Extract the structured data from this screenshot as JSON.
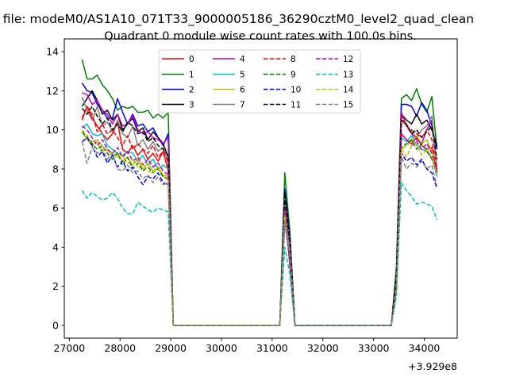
{
  "chart_data": {
    "type": "line",
    "suptitle": "n file: modeM0/AS1A10_071T33_9000005186_36290cztM0_level2_quad_clean",
    "title": "Quadrant 0 module wise count rates with 100.0s bins.",
    "xlabel": "",
    "ylabel": "",
    "x_offset_text": "+3.929e8",
    "xlim": [
      26900,
      34650
    ],
    "ylim": [
      -0.65,
      14.65
    ],
    "xticks": [
      27000,
      28000,
      29000,
      30000,
      31000,
      32000,
      33000,
      34000
    ],
    "yticks": [
      0,
      2,
      4,
      6,
      8,
      10,
      12,
      14
    ],
    "grid": false,
    "legend_placement": "top-center",
    "legend_columns": 4,
    "x": [
      27250,
      27350,
      27450,
      27550,
      27650,
      27750,
      27850,
      27950,
      28050,
      28150,
      28250,
      28350,
      28450,
      28550,
      28650,
      28750,
      28850,
      28950,
      29050,
      29150,
      29250,
      29350,
      29450,
      29550,
      29650,
      29750,
      29850,
      29950,
      30050,
      30150,
      30250,
      30350,
      30450,
      30550,
      30650,
      30750,
      30850,
      30950,
      31050,
      31150,
      31250,
      31350,
      31450,
      31550,
      31650,
      31750,
      31850,
      31950,
      32050,
      32150,
      32250,
      32350,
      32450,
      32550,
      32650,
      32750,
      32850,
      32950,
      33050,
      33150,
      33250,
      33350,
      33450,
      33550,
      33650,
      33750,
      33850,
      33950,
      34050,
      34150,
      34250
    ],
    "series": [
      {
        "name": "0",
        "color": "#ff0000",
        "dash": false,
        "values": [
          10.5,
          11.2,
          10.6,
          10.2,
          9.8,
          9.5,
          9.8,
          10.4,
          9.0,
          8.8,
          9.2,
          8.7,
          9.0,
          8.5,
          8.8,
          8.4,
          8.9,
          7.9,
          0,
          0,
          0,
          0,
          0,
          0,
          0,
          0,
          0,
          0,
          0,
          0,
          0,
          0,
          0,
          0,
          0,
          0,
          0,
          0,
          0,
          0,
          6.0,
          3.0,
          0,
          0,
          0,
          0,
          0,
          0,
          0,
          0,
          0,
          0,
          0,
          0,
          0,
          0,
          0,
          0,
          0,
          0,
          0,
          0,
          2.0,
          9.8,
          9.5,
          9.3,
          9.6,
          9.2,
          9.0,
          9.1,
          7.8
        ]
      },
      {
        "name": "1",
        "color": "#008000",
        "dash": false,
        "values": [
          13.6,
          12.6,
          12.6,
          12.8,
          12.3,
          12.0,
          11.6,
          11.0,
          11.2,
          11.1,
          11.2,
          10.9,
          10.9,
          11.0,
          10.6,
          10.8,
          10.6,
          10.9,
          0,
          0,
          0,
          0,
          0,
          0,
          0,
          0,
          0,
          0,
          0,
          0,
          0,
          0,
          0,
          0,
          0,
          0,
          0,
          0,
          0,
          0,
          7.8,
          4.8,
          0,
          0,
          0,
          0,
          0,
          0,
          0,
          0,
          0,
          0,
          0,
          0,
          0,
          0,
          0,
          0,
          0,
          0,
          0,
          0,
          3.0,
          11.6,
          11.8,
          11.5,
          12.1,
          11.3,
          10.9,
          11.7,
          9.0
        ]
      },
      {
        "name": "2",
        "color": "#0000ff",
        "dash": false,
        "values": [
          12.4,
          12.0,
          11.9,
          11.3,
          11.0,
          10.6,
          10.6,
          11.6,
          10.9,
          10.3,
          10.8,
          10.2,
          10.3,
          9.9,
          10.1,
          9.6,
          9.2,
          9.8,
          0,
          0,
          0,
          0,
          0,
          0,
          0,
          0,
          0,
          0,
          0,
          0,
          0,
          0,
          0,
          0,
          0,
          0,
          0,
          0,
          0,
          0,
          7.0,
          4.5,
          0,
          0,
          0,
          0,
          0,
          0,
          0,
          0,
          0,
          0,
          0,
          0,
          0,
          0,
          0,
          0,
          0,
          0,
          0,
          0,
          2.5,
          11.3,
          11.3,
          11.2,
          10.7,
          11.4,
          11.0,
          10.2,
          9.0
        ]
      },
      {
        "name": "3",
        "color": "#000000",
        "dash": false,
        "values": [
          11.2,
          11.6,
          12.0,
          11.5,
          10.8,
          11.0,
          10.5,
          10.8,
          10.0,
          10.3,
          10.6,
          9.9,
          10.1,
          9.5,
          9.9,
          9.6,
          9.3,
          8.6,
          0,
          0,
          0,
          0,
          0,
          0,
          0,
          0,
          0,
          0,
          0,
          0,
          0,
          0,
          0,
          0,
          0,
          0,
          0,
          0,
          0,
          0,
          6.8,
          4.3,
          0,
          0,
          0,
          0,
          0,
          0,
          0,
          0,
          0,
          0,
          0,
          0,
          0,
          0,
          0,
          0,
          0,
          0,
          0,
          0,
          2.5,
          10.8,
          10.5,
          10.3,
          10.8,
          10.3,
          10.5,
          10.0,
          9.2
        ]
      },
      {
        "name": "4",
        "color": "#bf00bf",
        "dash": false,
        "values": [
          11.9,
          11.8,
          11.3,
          11.5,
          11.0,
          10.8,
          10.3,
          10.8,
          10.2,
          10.3,
          10.7,
          10.0,
          9.8,
          9.9,
          9.6,
          9.5,
          9.3,
          9.6,
          0,
          0,
          0,
          0,
          0,
          0,
          0,
          0,
          0,
          0,
          0,
          0,
          0,
          0,
          0,
          0,
          0,
          0,
          0,
          0,
          0,
          0,
          6.3,
          4.0,
          0,
          0,
          0,
          0,
          0,
          0,
          0,
          0,
          0,
          0,
          0,
          0,
          0,
          0,
          0,
          0,
          0,
          0,
          0,
          0,
          2.0,
          10.9,
          10.2,
          9.8,
          9.5,
          9.3,
          10.0,
          10.5,
          8.0
        ]
      },
      {
        "name": "5",
        "color": "#00bfbf",
        "dash": false,
        "values": [
          10.1,
          10.3,
          9.8,
          9.7,
          9.8,
          9.2,
          9.0,
          8.8,
          8.7,
          8.9,
          8.8,
          8.4,
          8.7,
          8.2,
          8.5,
          8.0,
          8.2,
          8.0,
          0,
          0,
          0,
          0,
          0,
          0,
          0,
          0,
          0,
          0,
          0,
          0,
          0,
          0,
          0,
          0,
          0,
          0,
          0,
          0,
          0,
          0,
          5.5,
          3.5,
          0,
          0,
          0,
          0,
          0,
          0,
          0,
          0,
          0,
          0,
          0,
          0,
          0,
          0,
          0,
          0,
          0,
          0,
          0,
          0,
          2.0,
          9.6,
          9.4,
          9.7,
          9.2,
          9.0,
          8.9,
          8.6,
          7.6
        ]
      },
      {
        "name": "6",
        "color": "#bfbf00",
        "dash": false,
        "values": [
          9.9,
          9.5,
          9.2,
          9.4,
          8.9,
          9.0,
          8.7,
          8.8,
          8.4,
          8.6,
          8.2,
          8.5,
          8.0,
          8.3,
          7.9,
          8.1,
          7.7,
          7.6,
          0,
          0,
          0,
          0,
          0,
          0,
          0,
          0,
          0,
          0,
          0,
          0,
          0,
          0,
          0,
          0,
          0,
          0,
          0,
          0,
          0,
          0,
          5.8,
          3.8,
          0,
          0,
          0,
          0,
          0,
          0,
          0,
          0,
          0,
          0,
          0,
          0,
          0,
          0,
          0,
          0,
          0,
          0,
          0,
          0,
          2.0,
          9.0,
          9.2,
          9.4,
          9.7,
          9.3,
          9.5,
          8.9,
          8.2
        ]
      },
      {
        "name": "7",
        "color": "#808080",
        "dash": false,
        "values": [
          11.7,
          11.0,
          10.5,
          11.2,
          10.2,
          10.4,
          9.9,
          10.5,
          9.8,
          9.6,
          10.2,
          9.2,
          9.5,
          9.0,
          9.4,
          8.9,
          9.1,
          8.3,
          0,
          0,
          0,
          0,
          0,
          0,
          0,
          0,
          0,
          0,
          0,
          0,
          0,
          0,
          0,
          0,
          0,
          0,
          0,
          0,
          0,
          0,
          6.5,
          4.2,
          0,
          0,
          0,
          0,
          0,
          0,
          0,
          0,
          0,
          0,
          0,
          0,
          0,
          0,
          0,
          0,
          0,
          0,
          0,
          0,
          2.4,
          10.5,
          10.2,
          9.9,
          9.6,
          10.0,
          10.2,
          10.7,
          8.0
        ]
      },
      {
        "name": "8",
        "color": "#ff0000",
        "dash": true,
        "values": [
          10.6,
          11.2,
          10.8,
          9.9,
          10.3,
          9.8,
          10.0,
          9.6,
          9.2,
          9.7,
          9.0,
          9.3,
          9.0,
          8.8,
          9.2,
          8.6,
          8.9,
          8.4,
          0,
          0,
          0,
          0,
          0,
          0,
          0,
          0,
          0,
          0,
          0,
          0,
          0,
          0,
          0,
          0,
          0,
          0,
          0,
          0,
          0,
          0,
          6.0,
          3.8,
          0,
          0,
          0,
          0,
          0,
          0,
          0,
          0,
          0,
          0,
          0,
          0,
          0,
          0,
          0,
          0,
          0,
          0,
          0,
          0,
          2.2,
          10.7,
          10.2,
          10.0,
          9.8,
          9.6,
          10.0,
          9.5,
          7.9
        ]
      },
      {
        "name": "9",
        "color": "#008000",
        "dash": true,
        "values": [
          9.9,
          9.6,
          9.3,
          9.0,
          9.2,
          8.8,
          8.5,
          8.8,
          8.2,
          8.6,
          8.0,
          8.3,
          7.9,
          8.1,
          7.8,
          8.0,
          7.6,
          7.5,
          0,
          0,
          0,
          0,
          0,
          0,
          0,
          0,
          0,
          0,
          0,
          0,
          0,
          0,
          0,
          0,
          0,
          0,
          0,
          0,
          0,
          0,
          5.7,
          3.6,
          0,
          0,
          0,
          0,
          0,
          0,
          0,
          0,
          0,
          0,
          0,
          0,
          0,
          0,
          0,
          0,
          0,
          0,
          0,
          0,
          2.0,
          9.1,
          9.3,
          9.5,
          9.0,
          9.3,
          8.9,
          8.5,
          7.8
        ]
      },
      {
        "name": "10",
        "color": "#0000ff",
        "dash": true,
        "values": [
          9.4,
          9.6,
          9.2,
          8.6,
          8.9,
          8.3,
          8.7,
          8.1,
          8.4,
          7.9,
          8.1,
          7.6,
          7.2,
          7.6,
          7.5,
          7.8,
          7.3,
          7.2,
          0,
          0,
          0,
          0,
          0,
          0,
          0,
          0,
          0,
          0,
          0,
          0,
          0,
          0,
          0,
          0,
          0,
          0,
          0,
          0,
          0,
          0,
          5.3,
          3.4,
          0,
          0,
          0,
          0,
          0,
          0,
          0,
          0,
          0,
          0,
          0,
          0,
          0,
          0,
          0,
          0,
          0,
          0,
          0,
          0,
          1.8,
          8.8,
          8.4,
          8.6,
          8.2,
          8.5,
          8.0,
          7.8,
          7.0
        ]
      },
      {
        "name": "11",
        "color": "#000000",
        "dash": true,
        "values": [
          11.1,
          10.8,
          11.2,
          10.7,
          10.3,
          10.6,
          10.0,
          10.3,
          9.9,
          10.4,
          10.2,
          9.8,
          9.9,
          9.4,
          9.6,
          9.2,
          9.0,
          8.7,
          0,
          0,
          0,
          0,
          0,
          0,
          0,
          0,
          0,
          0,
          0,
          0,
          0,
          0,
          0,
          0,
          0,
          0,
          0,
          0,
          0,
          0,
          6.6,
          4.2,
          0,
          0,
          0,
          0,
          0,
          0,
          0,
          0,
          0,
          0,
          0,
          0,
          0,
          0,
          0,
          0,
          0,
          0,
          0,
          0,
          2.5,
          10.5,
          10.3,
          9.8,
          10.0,
          9.6,
          9.9,
          10.2,
          8.5
        ]
      },
      {
        "name": "12",
        "color": "#bf00bf",
        "dash": true,
        "values": [
          10.2,
          10.0,
          9.6,
          9.2,
          9.5,
          9.0,
          8.8,
          9.1,
          8.6,
          8.9,
          8.4,
          8.6,
          8.2,
          8.5,
          8.1,
          8.3,
          7.9,
          7.7,
          0,
          0,
          0,
          0,
          0,
          0,
          0,
          0,
          0,
          0,
          0,
          0,
          0,
          0,
          0,
          0,
          0,
          0,
          0,
          0,
          0,
          0,
          5.9,
          3.8,
          0,
          0,
          0,
          0,
          0,
          0,
          0,
          0,
          0,
          0,
          0,
          0,
          0,
          0,
          0,
          0,
          0,
          0,
          0,
          0,
          2.0,
          9.8,
          9.5,
          9.2,
          9.4,
          9.0,
          9.3,
          8.8,
          7.8
        ]
      },
      {
        "name": "13",
        "color": "#00bfbf",
        "dash": true,
        "values": [
          6.9,
          6.5,
          6.8,
          6.6,
          6.4,
          6.5,
          6.8,
          6.5,
          6.0,
          5.7,
          5.7,
          6.3,
          6.1,
          5.9,
          5.8,
          6.0,
          5.9,
          5.8,
          0,
          0,
          0,
          0,
          0,
          0,
          0,
          0,
          0,
          0,
          0,
          0,
          0,
          0,
          0,
          0,
          0,
          0,
          0,
          0,
          0,
          0,
          4.0,
          2.6,
          0,
          0,
          0,
          0,
          0,
          0,
          0,
          0,
          0,
          0,
          0,
          0,
          0,
          0,
          0,
          0,
          0,
          0,
          0,
          0,
          1.5,
          7.3,
          6.9,
          6.6,
          6.2,
          6.3,
          6.2,
          6.1,
          5.4
        ]
      },
      {
        "name": "14",
        "color": "#bfbf00",
        "dash": true,
        "values": [
          10.0,
          9.7,
          9.4,
          9.5,
          9.2,
          8.9,
          8.8,
          8.6,
          8.7,
          8.3,
          8.5,
          8.1,
          8.3,
          7.9,
          7.8,
          8.0,
          7.7,
          7.4,
          0,
          0,
          0,
          0,
          0,
          0,
          0,
          0,
          0,
          0,
          0,
          0,
          0,
          0,
          0,
          0,
          0,
          0,
          0,
          0,
          0,
          0,
          5.6,
          3.6,
          0,
          0,
          0,
          0,
          0,
          0,
          0,
          0,
          0,
          0,
          0,
          0,
          0,
          0,
          0,
          0,
          0,
          0,
          0,
          0,
          2.0,
          9.0,
          8.6,
          9.2,
          9.3,
          8.7,
          9.0,
          8.6,
          7.7
        ]
      },
      {
        "name": "15",
        "color": "#808080",
        "dash": true,
        "values": [
          9.4,
          8.3,
          9.1,
          8.8,
          9.0,
          8.5,
          8.8,
          8.0,
          7.9,
          8.2,
          7.8,
          7.9,
          7.5,
          7.7,
          7.3,
          7.6,
          7.2,
          7.3,
          0,
          0,
          0,
          0,
          0,
          0,
          0,
          0,
          0,
          0,
          0,
          0,
          0,
          0,
          0,
          0,
          0,
          0,
          0,
          0,
          0,
          0,
          5.4,
          3.5,
          0,
          0,
          0,
          0,
          0,
          0,
          0,
          0,
          0,
          0,
          0,
          0,
          0,
          0,
          0,
          0,
          0,
          0,
          0,
          0,
          1.8,
          8.6,
          8.0,
          8.3,
          8.1,
          8.4,
          8.0,
          8.2,
          7.1
        ]
      }
    ]
  }
}
